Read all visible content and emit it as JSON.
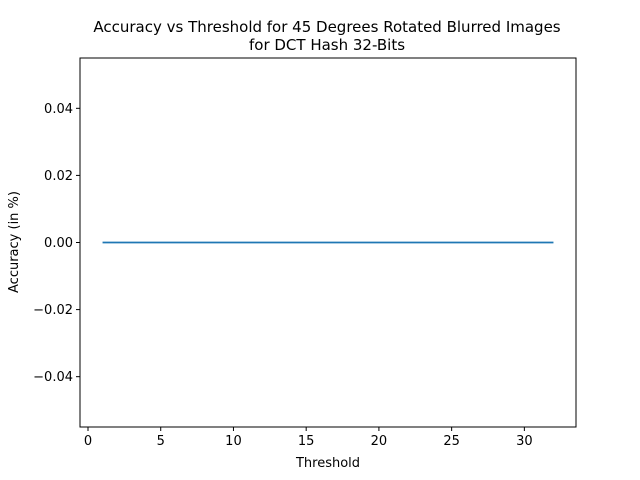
{
  "chart_data": {
    "type": "line",
    "title_line1": "Accuracy vs Threshold for 45 Degrees Rotated Blurred Images",
    "title_line2": "for DCT Hash 32-Bits",
    "xlabel": "Threshold",
    "ylabel": "Accuracy (in %)",
    "xlim": [
      -0.55,
      33.55
    ],
    "ylim": [
      -0.055,
      0.055
    ],
    "xticks": [
      0,
      5,
      10,
      15,
      20,
      25,
      30
    ],
    "xtick_labels": [
      "0",
      "5",
      "10",
      "15",
      "20",
      "25",
      "30"
    ],
    "yticks": [
      -0.04,
      -0.02,
      0.0,
      0.02,
      0.04
    ],
    "ytick_labels": [
      "−0.04",
      "−0.02",
      "0.00",
      "0.02",
      "0.04"
    ],
    "grid": false,
    "series": [
      {
        "color": "#1f77b4",
        "x": [
          1,
          2,
          3,
          4,
          5,
          6,
          7,
          8,
          9,
          10,
          11,
          12,
          13,
          14,
          15,
          16,
          17,
          18,
          19,
          20,
          21,
          22,
          23,
          24,
          25,
          26,
          27,
          28,
          29,
          30,
          31,
          32
        ],
        "y": [
          0,
          0,
          0,
          0,
          0,
          0,
          0,
          0,
          0,
          0,
          0,
          0,
          0,
          0,
          0,
          0,
          0,
          0,
          0,
          0,
          0,
          0,
          0,
          0,
          0,
          0,
          0,
          0,
          0,
          0,
          0,
          0
        ]
      }
    ]
  }
}
